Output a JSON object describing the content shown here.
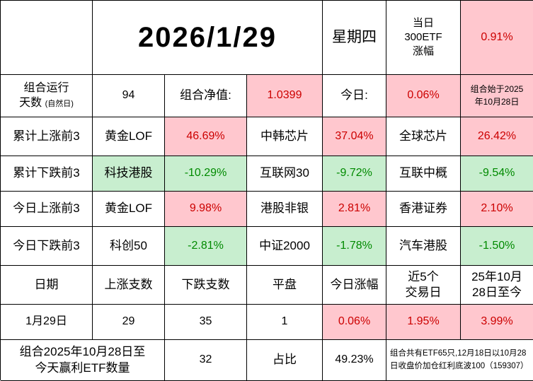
{
  "colors": {
    "up_bg": "#ffc7ce",
    "up_text": "#cc0000",
    "down_bg": "#c8eecf",
    "down_text": "#008a00"
  },
  "header": {
    "date": "2026/1/29",
    "weekday": "星期四",
    "etf300_line1": "当日",
    "etf300_line2": "300ETF",
    "etf300_line3": "涨幅",
    "etf300_value": "0.91%"
  },
  "summary": {
    "run_label_line1": "组合运行",
    "run_label_line2": "天数",
    "run_label_note": "(自然日)",
    "run_value": "94",
    "nav_label": "组合净值:",
    "nav_value": "1.0399",
    "today_label": "今日:",
    "today_value": "0.06%",
    "start_note": "组合始于2025年10月28日"
  },
  "rank_rows": [
    {
      "label": "累计上涨前3",
      "dir": "up",
      "items": [
        {
          "name": "黄金LOF",
          "value": "46.69%"
        },
        {
          "name": "中韩芯片",
          "value": "37.04%"
        },
        {
          "name": "全球芯片",
          "value": "26.42%"
        }
      ]
    },
    {
      "label": "累计下跌前3",
      "dir": "down",
      "items": [
        {
          "name": "科技港股",
          "value": "-10.29%"
        },
        {
          "name": "互联网30",
          "value": "-9.72%"
        },
        {
          "name": "互联中概",
          "value": "-9.54%"
        }
      ]
    },
    {
      "label": "今日上涨前3",
      "dir": "up",
      "items": [
        {
          "name": "黄金LOF",
          "value": "9.98%"
        },
        {
          "name": "港股非银",
          "value": "2.81%"
        },
        {
          "name": "香港证券",
          "value": "2.10%"
        }
      ]
    },
    {
      "label": "今日下跌前3",
      "dir": "down",
      "items": [
        {
          "name": "科创50",
          "value": "-2.81%"
        },
        {
          "name": "中证2000",
          "value": "-1.78%"
        },
        {
          "name": "汽车港股",
          "value": "-1.50%"
        }
      ]
    }
  ],
  "stats": {
    "headers": [
      "日期",
      "上涨支数",
      "下跌支数",
      "平盘",
      "今日涨幅",
      "近5个交易日",
      "25年10月28日至今"
    ],
    "row": {
      "date": "1月29日",
      "up_count": "29",
      "down_count": "35",
      "flat_count": "1",
      "today_change": "0.06%",
      "last5_change": "1.95%",
      "since_start_change": "3.99%"
    }
  },
  "footer": {
    "win_label": "组合2025年10月28日至今天赢利ETF数量",
    "win_count": "32",
    "ratio_label": "占比",
    "ratio_value": "49.23%",
    "note": "组合共有ETF65只,12月18日以10月28日收盘价加仓红利底波100（159307）"
  }
}
